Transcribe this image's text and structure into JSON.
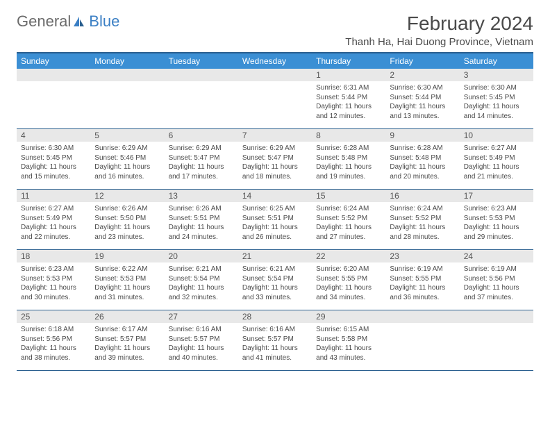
{
  "logo": {
    "text1": "General",
    "text2": "Blue"
  },
  "title": "February 2024",
  "location": "Thanh Ha, Hai Duong Province, Vietnam",
  "weekdays": [
    "Sunday",
    "Monday",
    "Tuesday",
    "Wednesday",
    "Thursday",
    "Friday",
    "Saturday"
  ],
  "colors": {
    "header_bg": "#3b8fd4",
    "header_text": "#ffffff",
    "border": "#2a5f8f",
    "daynum_bg": "#e8e8e8",
    "text": "#4a4a4a",
    "logo_gray": "#6b6b6b",
    "logo_blue": "#3b7fc4"
  },
  "weeks": [
    [
      {
        "empty": true
      },
      {
        "empty": true
      },
      {
        "empty": true
      },
      {
        "empty": true
      },
      {
        "num": "1",
        "sunrise": "Sunrise: 6:31 AM",
        "sunset": "Sunset: 5:44 PM",
        "daylight": "Daylight: 11 hours and 12 minutes."
      },
      {
        "num": "2",
        "sunrise": "Sunrise: 6:30 AM",
        "sunset": "Sunset: 5:44 PM",
        "daylight": "Daylight: 11 hours and 13 minutes."
      },
      {
        "num": "3",
        "sunrise": "Sunrise: 6:30 AM",
        "sunset": "Sunset: 5:45 PM",
        "daylight": "Daylight: 11 hours and 14 minutes."
      }
    ],
    [
      {
        "num": "4",
        "sunrise": "Sunrise: 6:30 AM",
        "sunset": "Sunset: 5:45 PM",
        "daylight": "Daylight: 11 hours and 15 minutes."
      },
      {
        "num": "5",
        "sunrise": "Sunrise: 6:29 AM",
        "sunset": "Sunset: 5:46 PM",
        "daylight": "Daylight: 11 hours and 16 minutes."
      },
      {
        "num": "6",
        "sunrise": "Sunrise: 6:29 AM",
        "sunset": "Sunset: 5:47 PM",
        "daylight": "Daylight: 11 hours and 17 minutes."
      },
      {
        "num": "7",
        "sunrise": "Sunrise: 6:29 AM",
        "sunset": "Sunset: 5:47 PM",
        "daylight": "Daylight: 11 hours and 18 minutes."
      },
      {
        "num": "8",
        "sunrise": "Sunrise: 6:28 AM",
        "sunset": "Sunset: 5:48 PM",
        "daylight": "Daylight: 11 hours and 19 minutes."
      },
      {
        "num": "9",
        "sunrise": "Sunrise: 6:28 AM",
        "sunset": "Sunset: 5:48 PM",
        "daylight": "Daylight: 11 hours and 20 minutes."
      },
      {
        "num": "10",
        "sunrise": "Sunrise: 6:27 AM",
        "sunset": "Sunset: 5:49 PM",
        "daylight": "Daylight: 11 hours and 21 minutes."
      }
    ],
    [
      {
        "num": "11",
        "sunrise": "Sunrise: 6:27 AM",
        "sunset": "Sunset: 5:49 PM",
        "daylight": "Daylight: 11 hours and 22 minutes."
      },
      {
        "num": "12",
        "sunrise": "Sunrise: 6:26 AM",
        "sunset": "Sunset: 5:50 PM",
        "daylight": "Daylight: 11 hours and 23 minutes."
      },
      {
        "num": "13",
        "sunrise": "Sunrise: 6:26 AM",
        "sunset": "Sunset: 5:51 PM",
        "daylight": "Daylight: 11 hours and 24 minutes."
      },
      {
        "num": "14",
        "sunrise": "Sunrise: 6:25 AM",
        "sunset": "Sunset: 5:51 PM",
        "daylight": "Daylight: 11 hours and 26 minutes."
      },
      {
        "num": "15",
        "sunrise": "Sunrise: 6:24 AM",
        "sunset": "Sunset: 5:52 PM",
        "daylight": "Daylight: 11 hours and 27 minutes."
      },
      {
        "num": "16",
        "sunrise": "Sunrise: 6:24 AM",
        "sunset": "Sunset: 5:52 PM",
        "daylight": "Daylight: 11 hours and 28 minutes."
      },
      {
        "num": "17",
        "sunrise": "Sunrise: 6:23 AM",
        "sunset": "Sunset: 5:53 PM",
        "daylight": "Daylight: 11 hours and 29 minutes."
      }
    ],
    [
      {
        "num": "18",
        "sunrise": "Sunrise: 6:23 AM",
        "sunset": "Sunset: 5:53 PM",
        "daylight": "Daylight: 11 hours and 30 minutes."
      },
      {
        "num": "19",
        "sunrise": "Sunrise: 6:22 AM",
        "sunset": "Sunset: 5:53 PM",
        "daylight": "Daylight: 11 hours and 31 minutes."
      },
      {
        "num": "20",
        "sunrise": "Sunrise: 6:21 AM",
        "sunset": "Sunset: 5:54 PM",
        "daylight": "Daylight: 11 hours and 32 minutes."
      },
      {
        "num": "21",
        "sunrise": "Sunrise: 6:21 AM",
        "sunset": "Sunset: 5:54 PM",
        "daylight": "Daylight: 11 hours and 33 minutes."
      },
      {
        "num": "22",
        "sunrise": "Sunrise: 6:20 AM",
        "sunset": "Sunset: 5:55 PM",
        "daylight": "Daylight: 11 hours and 34 minutes."
      },
      {
        "num": "23",
        "sunrise": "Sunrise: 6:19 AM",
        "sunset": "Sunset: 5:55 PM",
        "daylight": "Daylight: 11 hours and 36 minutes."
      },
      {
        "num": "24",
        "sunrise": "Sunrise: 6:19 AM",
        "sunset": "Sunset: 5:56 PM",
        "daylight": "Daylight: 11 hours and 37 minutes."
      }
    ],
    [
      {
        "num": "25",
        "sunrise": "Sunrise: 6:18 AM",
        "sunset": "Sunset: 5:56 PM",
        "daylight": "Daylight: 11 hours and 38 minutes."
      },
      {
        "num": "26",
        "sunrise": "Sunrise: 6:17 AM",
        "sunset": "Sunset: 5:57 PM",
        "daylight": "Daylight: 11 hours and 39 minutes."
      },
      {
        "num": "27",
        "sunrise": "Sunrise: 6:16 AM",
        "sunset": "Sunset: 5:57 PM",
        "daylight": "Daylight: 11 hours and 40 minutes."
      },
      {
        "num": "28",
        "sunrise": "Sunrise: 6:16 AM",
        "sunset": "Sunset: 5:57 PM",
        "daylight": "Daylight: 11 hours and 41 minutes."
      },
      {
        "num": "29",
        "sunrise": "Sunrise: 6:15 AM",
        "sunset": "Sunset: 5:58 PM",
        "daylight": "Daylight: 11 hours and 43 minutes."
      },
      {
        "empty": true
      },
      {
        "empty": true
      }
    ]
  ]
}
